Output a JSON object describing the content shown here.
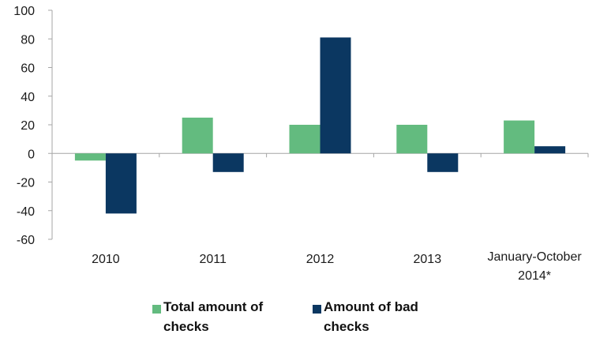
{
  "chart_data": {
    "type": "bar",
    "categories": [
      "2010",
      "2011",
      "2012",
      "2013",
      "January-October 2014*"
    ],
    "series": [
      {
        "name": "Total amount of checks",
        "values": [
          -5,
          25,
          20,
          20,
          23
        ],
        "color": "#63bb7f"
      },
      {
        "name": "Amount of bad checks",
        "values": [
          -42,
          -13,
          81,
          -13,
          5
        ],
        "color": "#0b3761"
      }
    ],
    "ylim": [
      -60,
      100
    ],
    "yticks": [
      100,
      80,
      60,
      40,
      20,
      0,
      -20,
      -40,
      -60
    ],
    "grid": false,
    "legend": "bottom",
    "title": "",
    "xlabel": "",
    "ylabel": ""
  },
  "legend": {
    "items": [
      {
        "label_line1": "Total amount of",
        "label_line2": "checks",
        "color": "#63bb7f"
      },
      {
        "label_line1": "Amount of bad",
        "label_line2": "checks",
        "color": "#0b3761"
      }
    ]
  }
}
